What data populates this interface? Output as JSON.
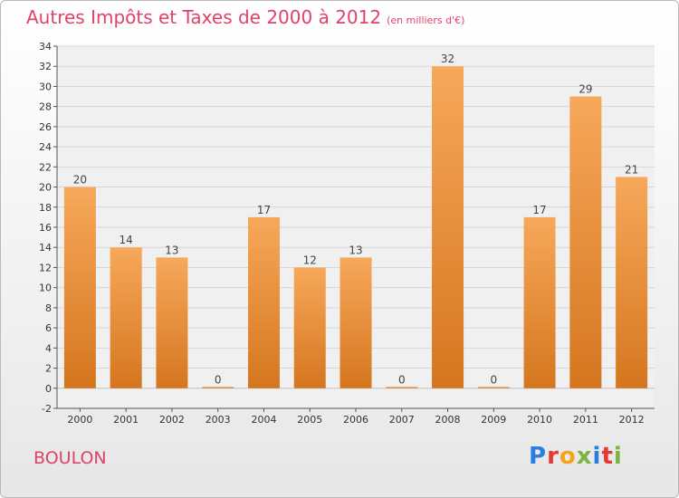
{
  "header": {
    "title": "Autres Impôts et Taxes de 2000 à 2012",
    "unit": "(en milliers d'€)"
  },
  "footer": {
    "commune": "BOULON",
    "logo_text": "Proxiti"
  },
  "colors": {
    "bar_light": "#f7a85a",
    "bar_dark": "#d5761f",
    "title": "#e0426a"
  },
  "chart_data": {
    "type": "bar",
    "title": "Autres Impôts et Taxes de 2000 à 2012",
    "subtitle": "(en milliers d'€)",
    "categories": [
      "2000",
      "2001",
      "2002",
      "2003",
      "2004",
      "2005",
      "2006",
      "2007",
      "2008",
      "2009",
      "2010",
      "2011",
      "2012"
    ],
    "values": [
      20,
      14,
      13,
      0,
      17,
      12,
      13,
      0,
      32,
      0,
      17,
      29,
      21
    ],
    "ylim": [
      -2,
      34
    ],
    "yticks": [
      -2,
      0,
      2,
      4,
      6,
      8,
      10,
      12,
      14,
      16,
      18,
      20,
      22,
      24,
      26,
      28,
      30,
      32,
      34
    ],
    "grid": true,
    "xlabel": "",
    "ylabel": ""
  }
}
